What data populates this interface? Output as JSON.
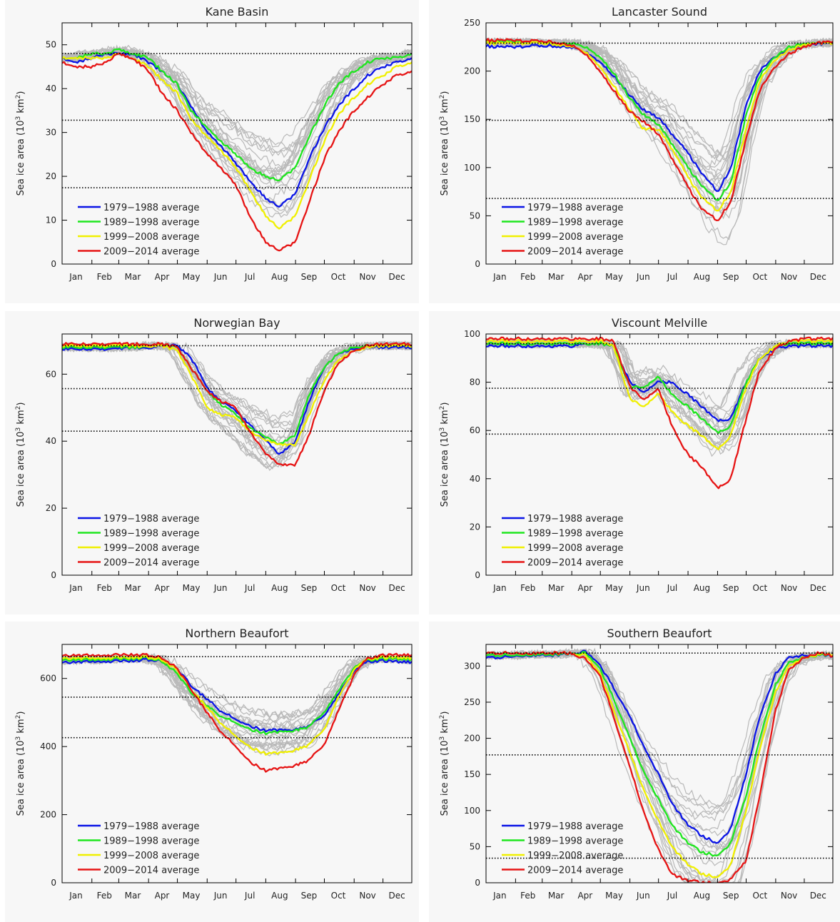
{
  "figure": {
    "months": [
      "Jan",
      "Feb",
      "Mar",
      "Apr",
      "May",
      "Jun",
      "Jul",
      "Aug",
      "Sep",
      "Oct",
      "Nov",
      "Dec"
    ],
    "legend": [
      "1979−1988 average",
      "1989−1998 average",
      "1999−2008 average",
      "2009−2014 average"
    ],
    "colors": {
      "c1979_1988": "#0a14e6",
      "c1989_1998": "#1ee61e",
      "c1999_2008": "#f0f000",
      "c2009_2014": "#e61414",
      "individual_years": "#b9b9b9",
      "reference_lines": "#000000"
    }
  },
  "chart_data": [
    {
      "type": "line",
      "title": "Kane Basin",
      "ylabel": "Sea ice area (10^3 km^2)",
      "x": [
        1,
        15,
        32,
        46,
        60,
        74,
        91,
        105,
        121,
        135,
        152,
        166,
        182,
        196,
        213,
        227,
        244,
        258,
        274,
        288,
        305,
        319,
        335,
        349,
        365
      ],
      "ylim": [
        0,
        55
      ],
      "yticks": [
        0,
        10,
        20,
        30,
        40,
        50
      ],
      "reference_lines": [
        48,
        32.8,
        17.4
      ],
      "legend_position": "lower-left",
      "series": [
        {
          "name": "1979−1988 average",
          "color": "#0a14e6",
          "values": [
            47,
            46,
            47,
            48,
            48,
            48,
            46,
            44,
            41,
            36,
            30,
            27,
            23,
            19,
            15,
            13,
            16,
            24,
            31,
            36,
            40,
            43,
            45,
            46,
            47
          ]
        },
        {
          "name": "1989−1998 average",
          "color": "#1ee61e",
          "values": [
            47,
            47,
            48,
            48,
            49,
            48,
            47,
            44,
            41,
            35,
            31,
            28,
            25,
            22,
            20,
            19,
            22,
            29,
            36,
            41,
            44,
            46,
            47,
            47,
            48
          ]
        },
        {
          "name": "1999−2008 average",
          "color": "#f0f000",
          "values": [
            47,
            47,
            47,
            47,
            48,
            47,
            45,
            42,
            39,
            33,
            29,
            26,
            22,
            17,
            11,
            8,
            11,
            19,
            28,
            34,
            38,
            41,
            43,
            45,
            46
          ]
        },
        {
          "name": "2009−2014 average",
          "color": "#e61414",
          "values": [
            46,
            45,
            45,
            46,
            48,
            47,
            44,
            39,
            35,
            30,
            25,
            22,
            18,
            11,
            5,
            3,
            5,
            14,
            24,
            30,
            35,
            38,
            41,
            43,
            44
          ]
        }
      ]
    },
    {
      "type": "line",
      "title": "Lancaster Sound",
      "ylabel": "Sea ice area (10^3 km^2)",
      "x": [
        1,
        15,
        32,
        46,
        60,
        74,
        91,
        105,
        121,
        135,
        152,
        166,
        182,
        196,
        213,
        227,
        244,
        258,
        274,
        288,
        305,
        319,
        335,
        349,
        365
      ],
      "ylim": [
        0,
        250
      ],
      "yticks": [
        0,
        50,
        100,
        150,
        200,
        250
      ],
      "reference_lines": [
        229,
        149,
        68
      ],
      "legend_position": "lower-left",
      "series": [
        {
          "name": "1979−1988 average",
          "color": "#0a14e6",
          "values": [
            226,
            225,
            225,
            226,
            226,
            226,
            225,
            220,
            210,
            195,
            175,
            160,
            152,
            135,
            115,
            95,
            75,
            100,
            165,
            200,
            215,
            222,
            226,
            228,
            229
          ]
        },
        {
          "name": "1989−1998 average",
          "color": "#1ee61e",
          "values": [
            230,
            230,
            230,
            229,
            229,
            229,
            229,
            225,
            215,
            198,
            172,
            155,
            145,
            125,
            100,
            82,
            66,
            85,
            155,
            195,
            215,
            225,
            228,
            229,
            230
          ]
        },
        {
          "name": "1999−2008 average",
          "color": "#f0f000",
          "values": [
            229,
            229,
            229,
            229,
            229,
            228,
            226,
            220,
            205,
            185,
            160,
            140,
            140,
            120,
            90,
            70,
            55,
            75,
            140,
            190,
            212,
            222,
            227,
            229,
            229
          ]
        },
        {
          "name": "2009−2014 average",
          "color": "#e61414",
          "values": [
            232,
            232,
            232,
            231,
            231,
            230,
            227,
            218,
            200,
            180,
            158,
            148,
            135,
            110,
            80,
            58,
            45,
            65,
            130,
            180,
            205,
            218,
            225,
            229,
            231
          ]
        }
      ]
    },
    {
      "type": "line",
      "title": "Norwegian Bay",
      "ylabel": "Sea ice area (10^3 km^2)",
      "x": [
        1,
        15,
        32,
        46,
        60,
        74,
        91,
        105,
        121,
        135,
        152,
        166,
        182,
        196,
        213,
        227,
        244,
        258,
        274,
        288,
        305,
        319,
        335,
        349,
        365
      ],
      "ylim": [
        0,
        72
      ],
      "yticks": [
        0,
        20,
        40,
        60
      ],
      "reference_lines": [
        68.5,
        55.7,
        43
      ],
      "legend_position": "lower-left",
      "series": [
        {
          "name": "1979−1988 average",
          "color": "#0a14e6",
          "values": [
            67.5,
            67.5,
            67.5,
            67.5,
            67.5,
            68,
            68,
            68.5,
            68.5,
            65,
            56,
            52,
            49,
            45,
            40,
            36,
            40,
            52,
            62,
            66,
            67.5,
            68,
            68,
            68,
            68
          ]
        },
        {
          "name": "1989−1998 average",
          "color": "#1ee61e",
          "values": [
            68,
            68,
            68,
            68,
            68,
            68,
            68.5,
            68.5,
            68,
            62,
            55,
            51,
            48,
            44,
            41,
            39,
            42,
            54,
            62,
            66,
            68,
            68.5,
            68.5,
            68.5,
            68.5
          ]
        },
        {
          "name": "1999−2008 average",
          "color": "#f0f000",
          "values": [
            68.5,
            68.5,
            68.5,
            68.5,
            68.5,
            68.5,
            68.5,
            68.5,
            67,
            60,
            50,
            48,
            47,
            43,
            40,
            39,
            39,
            48,
            58,
            64,
            67,
            68,
            68.5,
            68.5,
            68.5
          ]
        },
        {
          "name": "2009−2014 average",
          "color": "#e61414",
          "values": [
            69,
            69,
            69,
            69,
            69,
            69,
            69,
            69,
            68,
            62,
            55,
            52,
            50,
            43,
            36,
            33,
            33,
            42,
            55,
            63,
            67,
            68.5,
            69,
            69,
            69
          ]
        }
      ]
    },
    {
      "type": "line",
      "title": "Viscount Melville",
      "ylabel": "Sea ice area (10^3 km^2)",
      "x": [
        1,
        15,
        32,
        46,
        60,
        74,
        91,
        105,
        121,
        135,
        152,
        166,
        182,
        196,
        213,
        227,
        244,
        258,
        274,
        288,
        305,
        319,
        335,
        349,
        365
      ],
      "ylim": [
        0,
        100
      ],
      "yticks": [
        0,
        20,
        40,
        60,
        80,
        100
      ],
      "reference_lines": [
        96,
        77.5,
        58.5
      ],
      "legend_position": "lower-left",
      "series": [
        {
          "name": "1979−1988 average",
          "color": "#0a14e6",
          "values": [
            95,
            95,
            95,
            95,
            95,
            95,
            95,
            96,
            96,
            95,
            80,
            76,
            80,
            80,
            75,
            70,
            64,
            65,
            80,
            90,
            94,
            95,
            95,
            95,
            95
          ]
        },
        {
          "name": "1989−1998 average",
          "color": "#1ee61e",
          "values": [
            96,
            96,
            96,
            96,
            96,
            96,
            96,
            96,
            96,
            95,
            78,
            78,
            82,
            75,
            70,
            65,
            59,
            62,
            80,
            90,
            95,
            96,
            96,
            96,
            96
          ]
        },
        {
          "name": "1999−2008 average",
          "color": "#f0f000",
          "values": [
            97,
            97,
            97,
            97,
            97,
            97,
            97,
            97,
            97,
            95,
            73,
            70,
            75,
            68,
            62,
            58,
            52,
            58,
            78,
            90,
            95,
            97,
            97,
            97,
            97
          ]
        },
        {
          "name": "2009−2014 average",
          "color": "#e61414",
          "values": [
            98,
            98,
            98,
            98,
            98,
            98,
            98,
            98,
            98,
            97,
            78,
            73,
            77,
            62,
            50,
            45,
            36,
            40,
            65,
            85,
            94,
            97,
            98,
            98,
            98
          ]
        }
      ]
    },
    {
      "type": "line",
      "title": "Northern Beaufort",
      "ylabel": "Sea ice area (10^3 km^2)",
      "x": [
        1,
        15,
        32,
        46,
        60,
        74,
        91,
        105,
        121,
        135,
        152,
        166,
        182,
        196,
        213,
        227,
        244,
        258,
        274,
        288,
        305,
        319,
        335,
        349,
        365
      ],
      "ylim": [
        0,
        700
      ],
      "yticks": [
        0,
        200,
        400,
        600
      ],
      "reference_lines": [
        664,
        545,
        426
      ],
      "legend_position": "lower-left",
      "series": [
        {
          "name": "1979−1988 average",
          "color": "#0a14e6",
          "values": [
            648,
            648,
            650,
            650,
            652,
            652,
            655,
            650,
            630,
            580,
            540,
            505,
            480,
            460,
            448,
            448,
            450,
            460,
            490,
            550,
            620,
            650,
            652,
            650,
            648
          ]
        },
        {
          "name": "1989−1998 average",
          "color": "#1ee61e",
          "values": [
            655,
            655,
            655,
            656,
            658,
            658,
            660,
            650,
            615,
            560,
            520,
            490,
            470,
            450,
            440,
            442,
            448,
            458,
            500,
            560,
            630,
            655,
            658,
            658,
            656
          ]
        },
        {
          "name": "1999−2008 average",
          "color": "#f0f000",
          "values": [
            660,
            660,
            660,
            660,
            662,
            662,
            662,
            655,
            625,
            570,
            515,
            470,
            430,
            398,
            380,
            380,
            390,
            405,
            450,
            540,
            625,
            658,
            662,
            662,
            660
          ]
        },
        {
          "name": "2009−2014 average",
          "color": "#e61414",
          "values": [
            668,
            668,
            668,
            668,
            670,
            670,
            668,
            660,
            630,
            570,
            500,
            445,
            400,
            355,
            330,
            335,
            345,
            360,
            405,
            500,
            610,
            660,
            668,
            670,
            668
          ]
        }
      ]
    },
    {
      "type": "line",
      "title": "Southern Beaufort",
      "ylabel": "Sea ice area (10^3 km^2)",
      "x": [
        1,
        15,
        32,
        46,
        60,
        74,
        91,
        105,
        121,
        135,
        152,
        166,
        182,
        196,
        213,
        227,
        244,
        258,
        274,
        288,
        305,
        319,
        335,
        349,
        365
      ],
      "ylim": [
        0,
        330
      ],
      "yticks": [
        0,
        50,
        100,
        150,
        200,
        250,
        300
      ],
      "reference_lines": [
        318,
        177,
        34
      ],
      "legend_position": "lower-left",
      "series": [
        {
          "name": "1979−1988 average",
          "color": "#0a14e6",
          "values": [
            312,
            312,
            314,
            315,
            315,
            315,
            318,
            320,
            300,
            270,
            230,
            190,
            150,
            110,
            80,
            65,
            55,
            75,
            150,
            230,
            290,
            312,
            315,
            315,
            314
          ]
        },
        {
          "name": "1989−1998 average",
          "color": "#1ee61e",
          "values": [
            315,
            315,
            315,
            316,
            316,
            316,
            318,
            318,
            295,
            255,
            200,
            155,
            115,
            80,
            55,
            42,
            38,
            55,
            120,
            200,
            275,
            305,
            312,
            315,
            315
          ]
        },
        {
          "name": "1999−2008 average",
          "color": "#f0f000",
          "values": [
            318,
            318,
            318,
            318,
            318,
            318,
            318,
            315,
            288,
            240,
            180,
            130,
            85,
            50,
            25,
            12,
            8,
            25,
            100,
            185,
            265,
            300,
            312,
            316,
            316
          ]
        },
        {
          "name": "2009−2014 average",
          "color": "#e61414",
          "values": [
            318,
            318,
            318,
            318,
            318,
            318,
            318,
            310,
            285,
            230,
            160,
            100,
            45,
            12,
            3,
            0,
            0,
            5,
            30,
            120,
            240,
            295,
            312,
            318,
            314
          ]
        }
      ]
    }
  ]
}
